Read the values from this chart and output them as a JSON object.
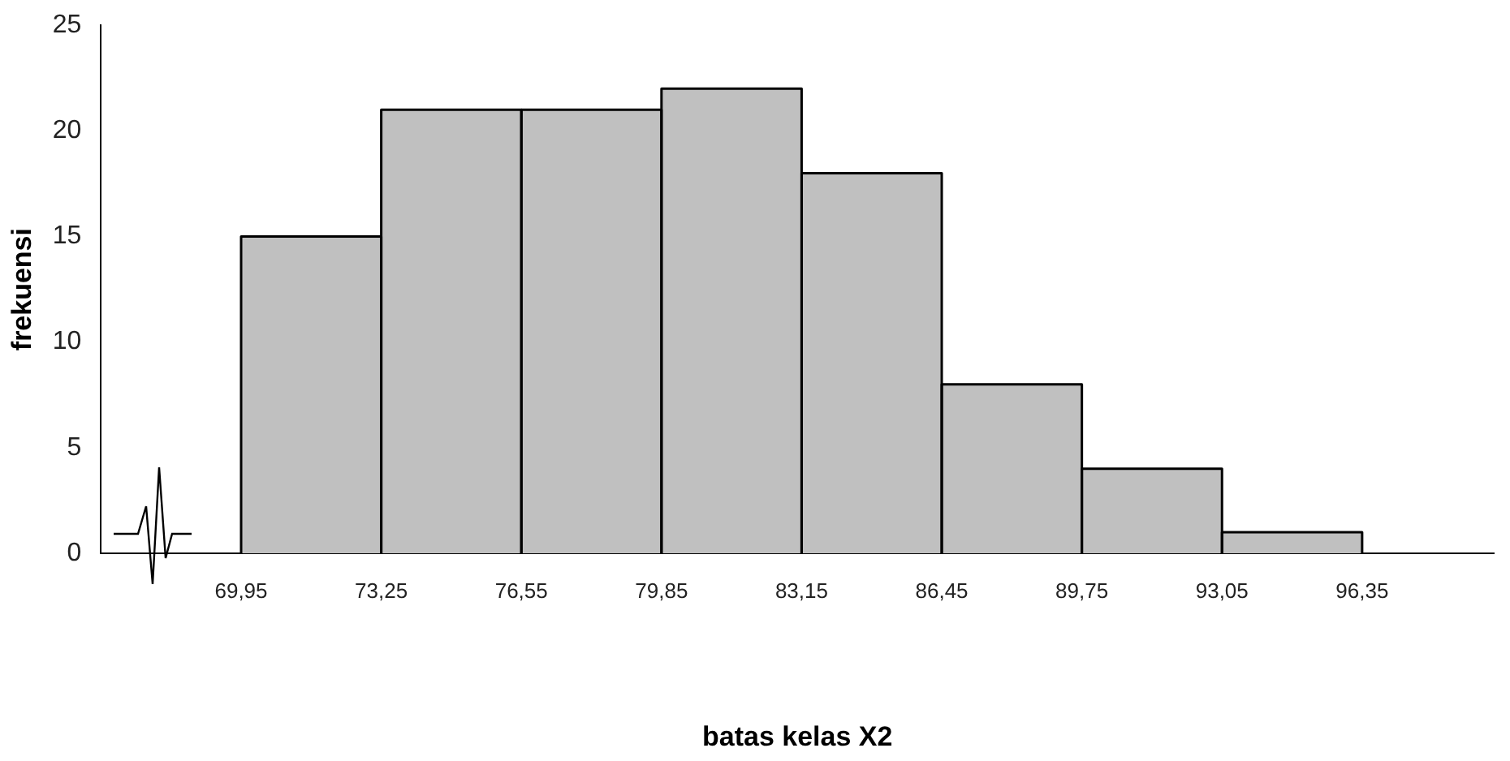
{
  "chart_data": {
    "type": "histogram",
    "xlabel": "batas kelas X2",
    "ylabel": "frekuensi",
    "bins": [
      69.95,
      73.25,
      76.55,
      79.85,
      83.15,
      86.45,
      89.75,
      93.05,
      96.35
    ],
    "values": [
      15,
      21,
      21,
      22,
      18,
      8,
      4,
      1
    ],
    "color": "#c0c0c0",
    "xlim": [
      66.65,
      99.45
    ],
    "xticks": [
      {
        "value": 69.95,
        "label": "69,95"
      },
      {
        "value": 73.25,
        "label": "73,25"
      },
      {
        "value": 76.55,
        "label": "76,55"
      },
      {
        "value": 79.85,
        "label": "79,85"
      },
      {
        "value": 83.15,
        "label": "83,15"
      },
      {
        "value": 86.45,
        "label": "86,45"
      },
      {
        "value": 89.75,
        "label": "89,75"
      },
      {
        "value": 93.05,
        "label": "93,05"
      },
      {
        "value": 96.35,
        "label": "96,35"
      }
    ],
    "ylim": [
      0,
      25
    ],
    "yticks": [
      0,
      5,
      10,
      15,
      20,
      25
    ],
    "grid": false,
    "legend": false
  }
}
